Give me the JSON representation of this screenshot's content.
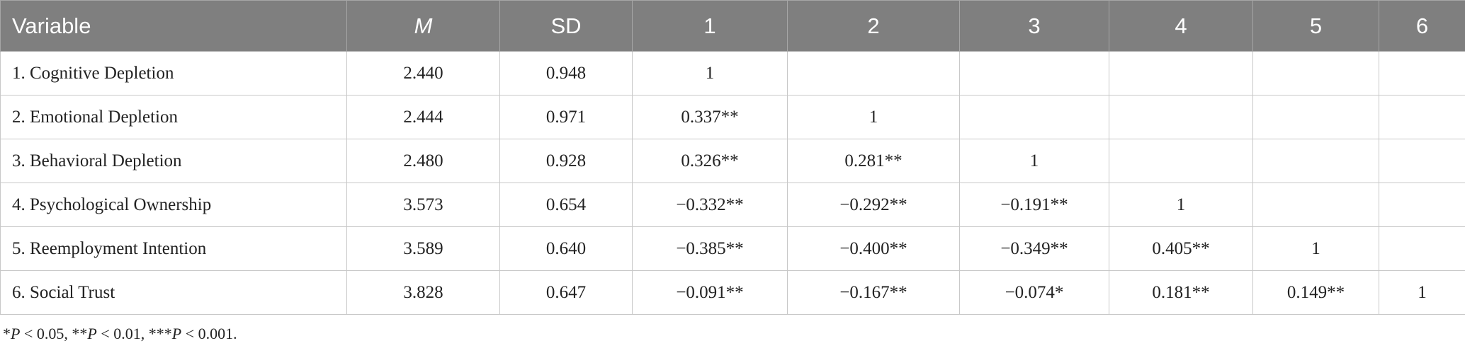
{
  "table": {
    "header": [
      "Variable",
      "M",
      "SD",
      "1",
      "2",
      "3",
      "4",
      "5",
      "6"
    ],
    "rows": [
      [
        "1. Cognitive Depletion",
        "2.440",
        "0.948",
        "1",
        null,
        null,
        null,
        null,
        null
      ],
      [
        "2. Emotional Depletion",
        "2.444",
        "0.971",
        "0.337**",
        "1",
        null,
        null,
        null,
        null
      ],
      [
        "3. Behavioral Depletion",
        "2.480",
        "0.928",
        "0.326**",
        "0.281**",
        "1",
        null,
        null,
        null
      ],
      [
        "4. Psychological Ownership",
        "3.573",
        "0.654",
        "−0.332**",
        "−0.292**",
        "−0.191**",
        "1",
        null,
        null
      ],
      [
        "5. Reemployment Intention",
        "3.589",
        "0.640",
        "−0.385**",
        "−0.400**",
        "−0.349**",
        "0.405**",
        "1",
        null
      ],
      [
        "6. Social Trust",
        "3.828",
        "0.647",
        "−0.091**",
        "−0.167**",
        "−0.074*",
        "0.181**",
        "0.149**",
        "1"
      ]
    ]
  },
  "footnote": [
    "*",
    "P",
    " < 0.05, **",
    "P",
    " < 0.01, ***",
    "P",
    " < 0.001."
  ]
}
